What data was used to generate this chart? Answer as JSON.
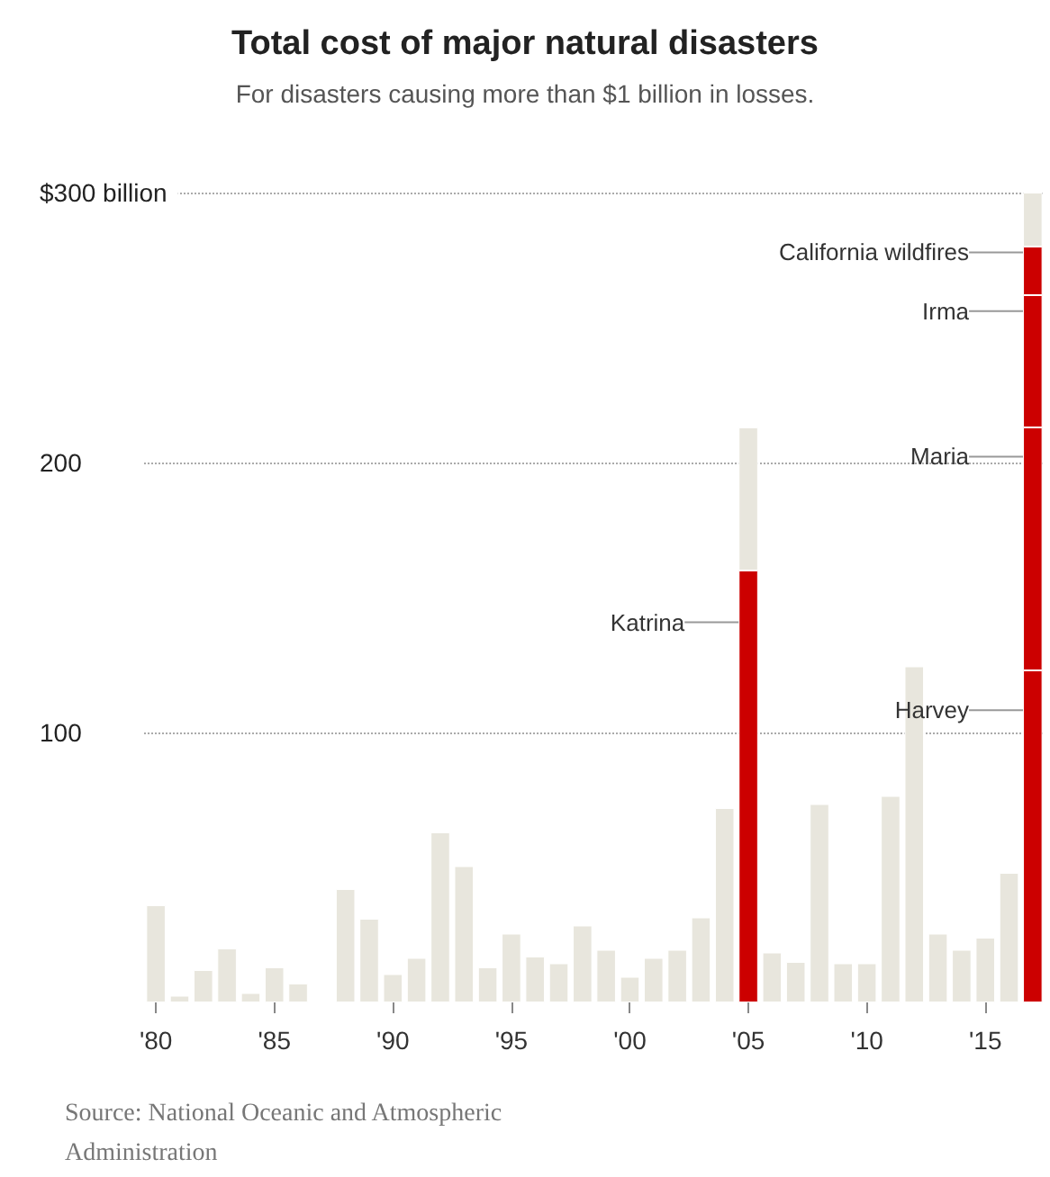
{
  "chart_data": {
    "type": "bar",
    "title": "Total cost of major natural disasters",
    "subtitle": "For disasters causing more than $1 billion in losses.",
    "categories": [
      "'80",
      null,
      null,
      null,
      null,
      "'85",
      null,
      null,
      null,
      null,
      "'90",
      null,
      null,
      null,
      null,
      "'95",
      null,
      null,
      null,
      null,
      "'00",
      null,
      null,
      null,
      null,
      "'05",
      null,
      null,
      null,
      null,
      "'10",
      null,
      null,
      null,
      null,
      "'15",
      null,
      null
    ],
    "stacked": true,
    "series": [
      {
        "name": "Katrina",
        "color": "#cc0000",
        "values": [
          null,
          null,
          null,
          null,
          null,
          null,
          null,
          null,
          null,
          null,
          null,
          null,
          null,
          null,
          null,
          null,
          null,
          null,
          null,
          null,
          null,
          null,
          null,
          null,
          null,
          160,
          null,
          null,
          null,
          null,
          null,
          null,
          null,
          null,
          null,
          null,
          null,
          null
        ]
      },
      {
        "name": "Harvey",
        "color": "#cc0000",
        "values": [
          null,
          null,
          null,
          null,
          null,
          null,
          null,
          null,
          null,
          null,
          null,
          null,
          null,
          null,
          null,
          null,
          null,
          null,
          null,
          null,
          null,
          null,
          null,
          null,
          null,
          null,
          null,
          null,
          null,
          null,
          null,
          null,
          null,
          null,
          null,
          null,
          null,
          123
        ]
      },
      {
        "name": "Maria",
        "color": "#cc0000",
        "values": [
          null,
          null,
          null,
          null,
          null,
          null,
          null,
          null,
          null,
          null,
          null,
          null,
          null,
          null,
          null,
          null,
          null,
          null,
          null,
          null,
          null,
          null,
          null,
          null,
          null,
          null,
          null,
          null,
          null,
          null,
          null,
          null,
          null,
          null,
          null,
          null,
          null,
          90
        ]
      },
      {
        "name": "Irma",
        "color": "#cc0000",
        "values": [
          null,
          null,
          null,
          null,
          null,
          null,
          null,
          null,
          null,
          null,
          null,
          null,
          null,
          null,
          null,
          null,
          null,
          null,
          null,
          null,
          null,
          null,
          null,
          null,
          null,
          null,
          null,
          null,
          null,
          null,
          null,
          null,
          null,
          null,
          null,
          null,
          null,
          49
        ]
      },
      {
        "name": "California wildfires",
        "color": "#cc0000",
        "values": [
          null,
          null,
          null,
          null,
          null,
          null,
          null,
          null,
          null,
          null,
          null,
          null,
          null,
          null,
          null,
          null,
          null,
          null,
          null,
          null,
          null,
          null,
          null,
          null,
          null,
          null,
          null,
          null,
          null,
          null,
          null,
          null,
          null,
          null,
          null,
          null,
          null,
          18
        ]
      },
      {
        "color": "#e8e6dd",
        "values": [
          36,
          2.5,
          12,
          20,
          3.5,
          13,
          7,
          null,
          42,
          31,
          10.5,
          16.5,
          63,
          50.5,
          13,
          25.5,
          17,
          14.5,
          28.5,
          19.5,
          9.5,
          16.5,
          19.5,
          31.5,
          72,
          53,
          18.5,
          15,
          73.5,
          14.5,
          14.5,
          76.5,
          124.5,
          25.5,
          19.5,
          24,
          48,
          20
        ]
      }
    ],
    "ylim": [
      0,
      300
    ],
    "yticks": [
      100,
      200,
      {
        "value": 300,
        "label": "$300 billion"
      }
    ],
    "grid": "y",
    "annotations": [
      "Source: National Oceanic and Atmospheric Administration"
    ]
  }
}
